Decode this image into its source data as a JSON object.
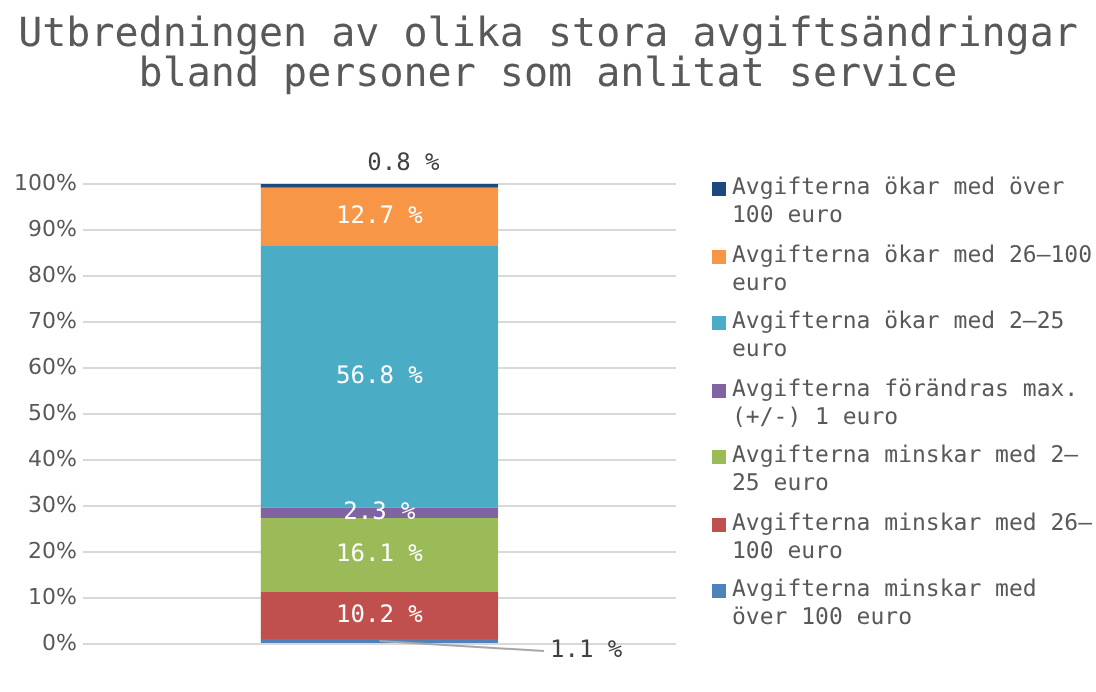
{
  "chart_data": {
    "type": "bar",
    "stacked": true,
    "title": "Utbredningen av olika stora avgiftsändringar bland personer som anlitat service",
    "categories": [
      null
    ],
    "series": [
      {
        "name": "Avgifterna minskar med över 100 euro",
        "color": "#4f81bd",
        "values": [
          1.1
        ],
        "value_labels": [
          "1.1 %"
        ]
      },
      {
        "name": "Avgifterna minskar med 26–100 euro",
        "color": "#c0504d",
        "values": [
          10.2
        ],
        "value_labels": [
          "10.2 %"
        ]
      },
      {
        "name": "Avgifterna minskar med 2–25 euro",
        "color": "#9bbb59",
        "values": [
          16.1
        ],
        "value_labels": [
          "16.1 %"
        ]
      },
      {
        "name": "Avgifterna förändras max. (+/-) 1 euro",
        "color": "#8064a2",
        "values": [
          2.3
        ],
        "value_labels": [
          "2.3 %"
        ]
      },
      {
        "name": "Avgifterna ökar med 2–25 euro",
        "color": "#4bacc6",
        "values": [
          56.8
        ],
        "value_labels": [
          "56.8 %"
        ]
      },
      {
        "name": "Avgifterna ökar med 26–100 euro",
        "color": "#f79646",
        "values": [
          12.7
        ],
        "value_labels": [
          "12.7 %"
        ]
      },
      {
        "name": "Avgifterna ökar med över 100 euro",
        "color": "#1f497d",
        "values": [
          0.8
        ],
        "value_labels": [
          "0.8 %"
        ]
      }
    ],
    "ylim": [
      0,
      100
    ],
    "yticks": [
      {
        "value": 0,
        "label": "0%"
      },
      {
        "value": 10,
        "label": "10%"
      },
      {
        "value": 20,
        "label": "20%"
      },
      {
        "value": 30,
        "label": "30%"
      },
      {
        "value": 40,
        "label": "40%"
      },
      {
        "value": 50,
        "label": "50%"
      },
      {
        "value": 60,
        "label": "60%"
      },
      {
        "value": 70,
        "label": "70%"
      },
      {
        "value": 80,
        "label": "80%"
      },
      {
        "value": 90,
        "label": "90%"
      },
      {
        "value": 100,
        "label": "100%"
      }
    ],
    "grid": "y",
    "legend": "right",
    "tick_labels": "y"
  }
}
